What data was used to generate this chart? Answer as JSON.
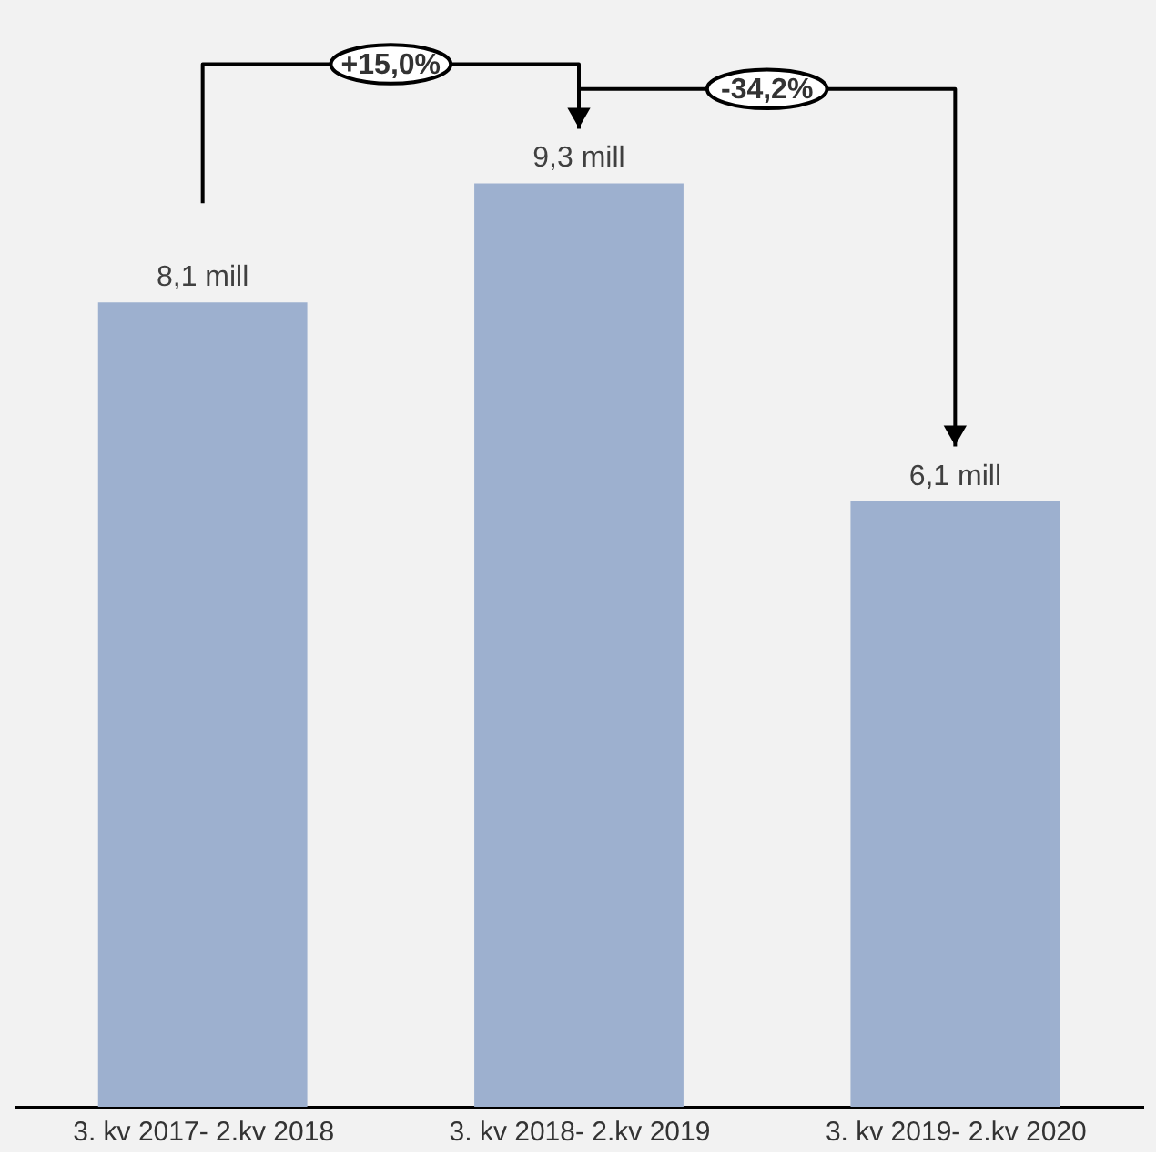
{
  "chart_data": {
    "type": "bar",
    "categories": [
      "3. kv 2017- 2.kv 2018",
      "3. kv 2018- 2.kv 2019",
      "3. kv 2019- 2.kv 2020"
    ],
    "values": [
      8.1,
      9.3,
      6.1
    ],
    "value_labels": [
      "8,1 mill",
      "9,3 mill",
      "6,1 mill"
    ],
    "color": "#9db0cf",
    "tick_labels": "x",
    "grid": false,
    "annotations": [
      "+15,0%",
      "-34,2%"
    ]
  }
}
